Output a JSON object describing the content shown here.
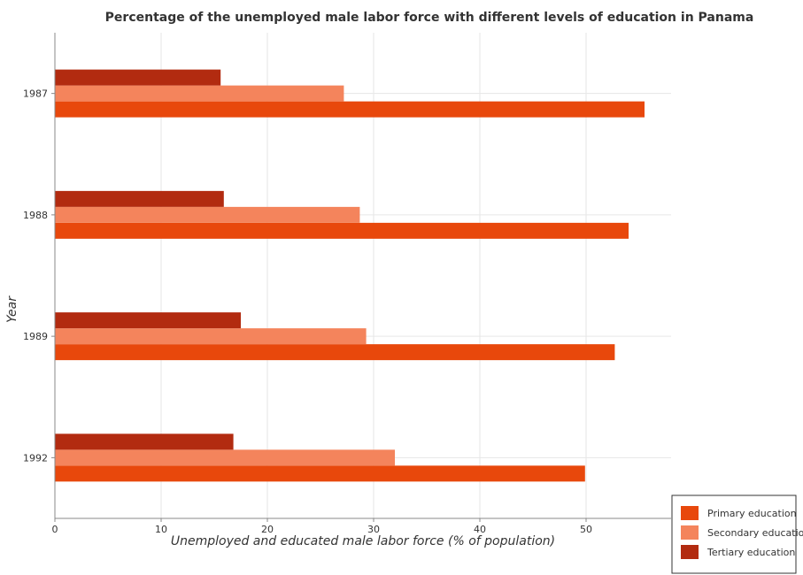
{
  "chart_data": {
    "type": "bar",
    "orientation": "horizontal",
    "title": "Percentage of the unemployed male labor force with different levels of education in Panama",
    "xlabel": "Unemployed and educated male labor force (% of population)",
    "ylabel": "Year",
    "categories": [
      "1987",
      "1988",
      "1989",
      "1992"
    ],
    "series": [
      {
        "name": "Primary education",
        "color": "#e8480c",
        "values": [
          55.5,
          54.0,
          52.7,
          49.9
        ]
      },
      {
        "name": "Secondary education",
        "color": "#f4845c",
        "values": [
          27.2,
          28.7,
          29.3,
          32.0
        ]
      },
      {
        "name": "Tertiary education",
        "color": "#b22b10",
        "values": [
          15.6,
          15.9,
          17.5,
          16.8
        ]
      }
    ],
    "xticks": [
      "0",
      "10",
      "20",
      "30",
      "40",
      "50"
    ],
    "xlim": [
      0,
      58
    ],
    "grid": true,
    "legend_position": "bottom-right"
  }
}
